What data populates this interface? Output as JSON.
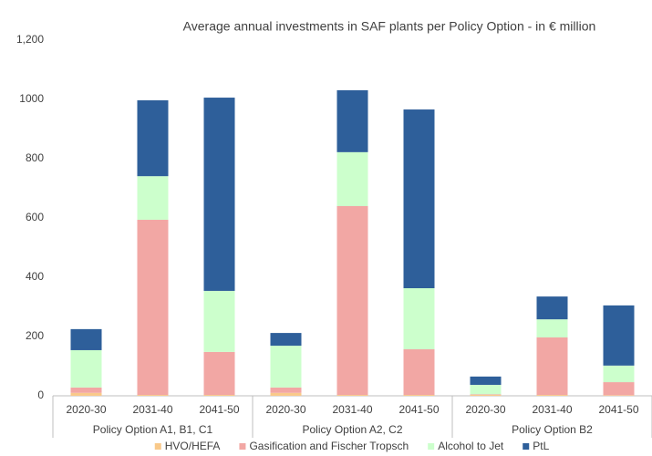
{
  "chart_data": {
    "type": "stacked_bar",
    "title": "Average annual investments in SAF plants per Policy Option - in € million",
    "categories": [
      "2020-30",
      "2031-40",
      "2041-50",
      "2020-30",
      "2031-40",
      "2041-50",
      "2020-30",
      "2031-40",
      "2041-50"
    ],
    "category_groups": [
      "Policy Option A1, B1, C1",
      "Policy Option A2, C2",
      "Policy Option B2"
    ],
    "series": [
      {
        "name": "HVO/HEFA",
        "color": "#f9c98a",
        "values": [
          10,
          3,
          3,
          10,
          3,
          3,
          3,
          3,
          2
        ]
      },
      {
        "name": "Gasification and Fischer Tropsch",
        "color": "#f2a7a4",
        "values": [
          18,
          591,
          145,
          18,
          637,
          154,
          2,
          194,
          44
        ]
      },
      {
        "name": "Alcohol to Jet",
        "color": "#ccffcc",
        "values": [
          126,
          147,
          206,
          141,
          182,
          206,
          32,
          61,
          56
        ]
      },
      {
        "name": "PtL",
        "color": "#2e5f9a",
        "values": [
          71,
          256,
          652,
          43,
          209,
          603,
          28,
          77,
          203
        ]
      }
    ],
    "ylim": [
      0,
      1200
    ],
    "yticks": [
      0,
      200,
      400,
      600,
      800,
      1000,
      {
        "value": 1200,
        "label": "1,200"
      }
    ],
    "grid": false
  }
}
